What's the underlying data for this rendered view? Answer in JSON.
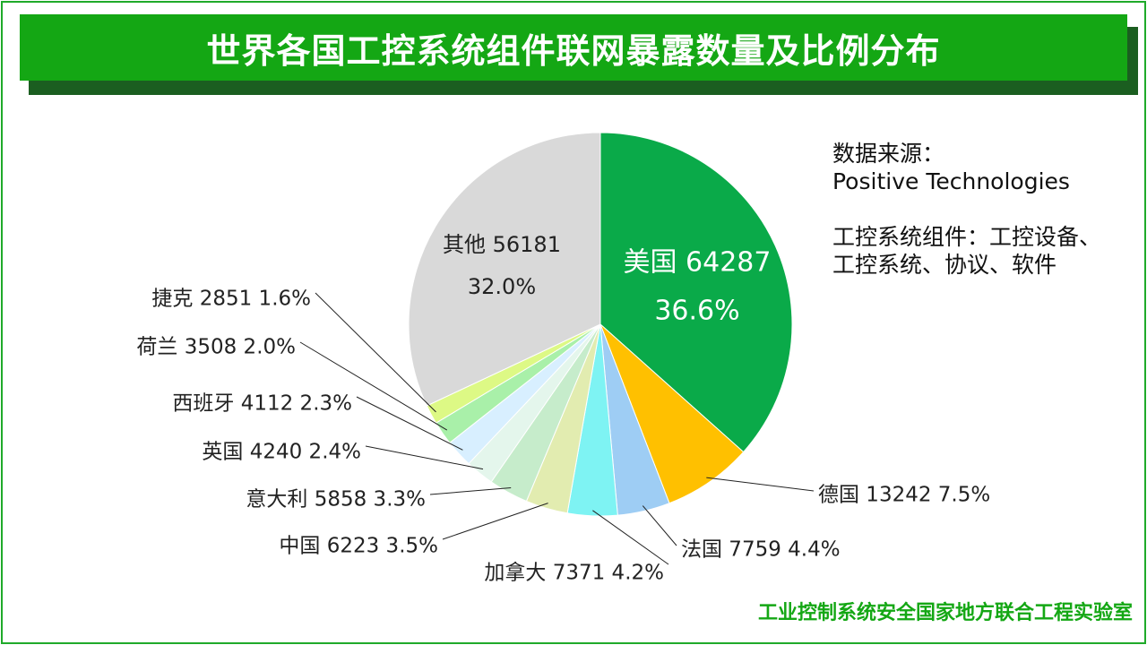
{
  "title": "世界各国工控系统组件联网暴露数量及比例分布",
  "notes": {
    "source_label": "数据来源：",
    "source_value": "Positive Technologies",
    "component_line1": "工控系统组件：工控设备、",
    "component_line2": "工控系统、协议、软件"
  },
  "footer": "工业控制系统安全国家地方联合工程实验室",
  "chart_data": {
    "type": "pie",
    "title": "世界各国工控系统组件联网暴露数量及比例分布",
    "slices": [
      {
        "name": "美国",
        "value": 64287,
        "percent": "36.6%",
        "color": "#0aaa49",
        "label": "美国 64287",
        "label2": "36.6%"
      },
      {
        "name": "德国",
        "value": 13242,
        "percent": "7.5%",
        "color": "#ffc000",
        "label": "德国 13242  7.5%"
      },
      {
        "name": "法国",
        "value": 7759,
        "percent": "4.4%",
        "color": "#9ecdf4",
        "label": "法国 7759  4.4%"
      },
      {
        "name": "加拿大",
        "value": 7371,
        "percent": "4.2%",
        "color": "#7ef3f3",
        "label": "加拿大 7371  4.2%"
      },
      {
        "name": "中国",
        "value": 6223,
        "percent": "3.5%",
        "color": "#e2ecb0",
        "label": "中国 6223  3.5%"
      },
      {
        "name": "意大利",
        "value": 5858,
        "percent": "3.3%",
        "color": "#c6eccb",
        "label": "意大利 5858  3.3%"
      },
      {
        "name": "英国",
        "value": 4240,
        "percent": "2.4%",
        "color": "#e4f6ec",
        "label": "英国 4240  2.4%"
      },
      {
        "name": "西班牙",
        "value": 4112,
        "percent": "2.3%",
        "color": "#d8efff",
        "label": "西班牙 4112  2.3%"
      },
      {
        "name": "荷兰",
        "value": 3508,
        "percent": "2.0%",
        "color": "#a9f0a9",
        "label": "荷兰 3508  2.0%"
      },
      {
        "name": "捷克",
        "value": 2851,
        "percent": "1.6%",
        "color": "#ddf985",
        "label": "捷克 2851  1.6%"
      },
      {
        "name": "其他",
        "value": 56181,
        "percent": "32.0%",
        "color": "#d9d9d9",
        "label": "其他 56181",
        "label2": "32.0%"
      }
    ],
    "start_angle": "12 o'clock",
    "direction": "clockwise"
  }
}
